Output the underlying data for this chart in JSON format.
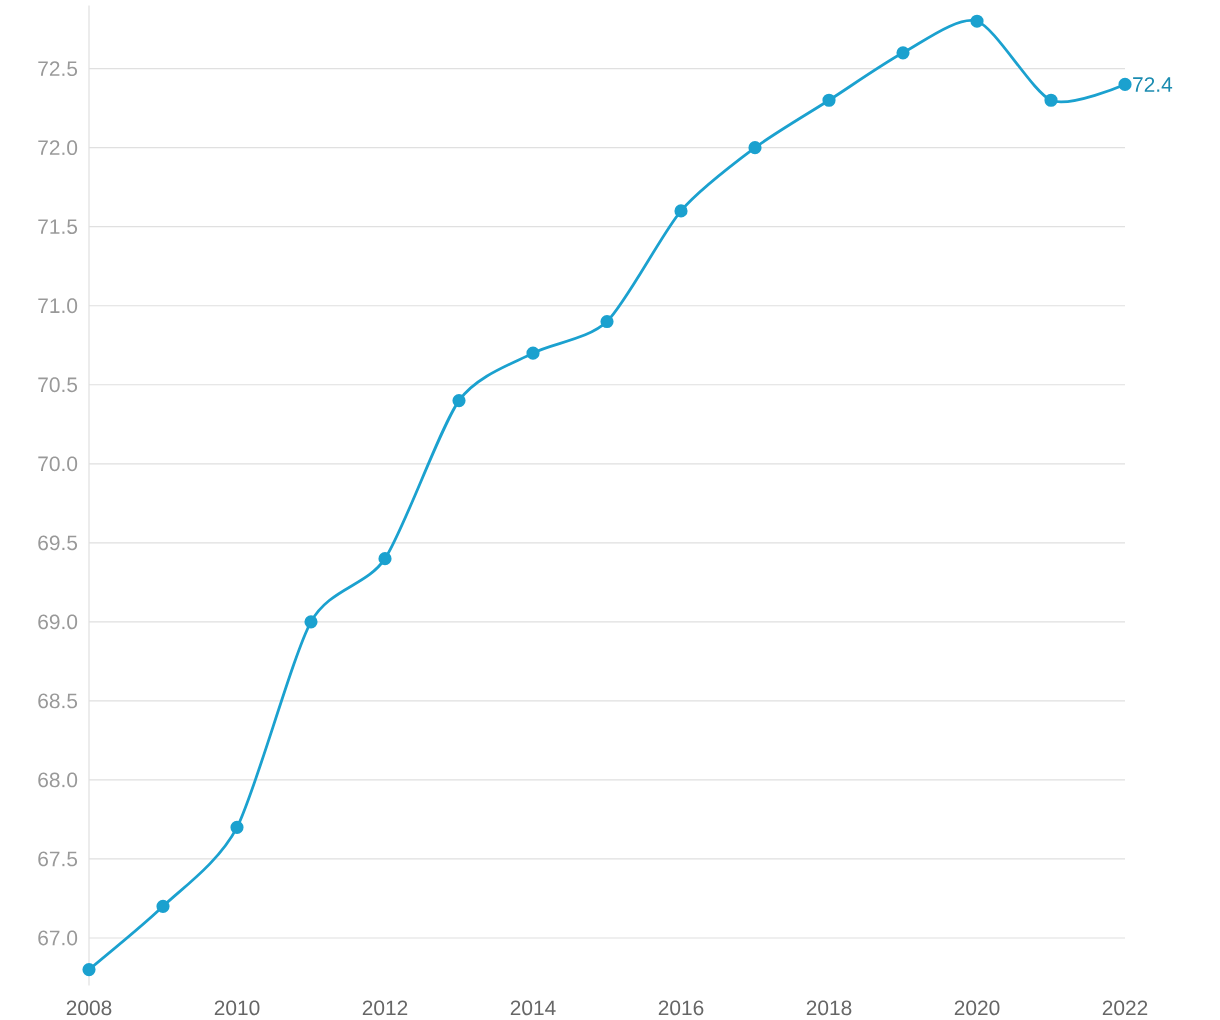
{
  "chart_data": {
    "type": "line",
    "marker": "circle",
    "grid": "y",
    "color": "#1ba1cf",
    "x": [
      2008,
      2009,
      2010,
      2011,
      2012,
      2013,
      2014,
      2015,
      2016,
      2017,
      2018,
      2019,
      2020,
      2021,
      2022
    ],
    "values": [
      66.8,
      67.2,
      67.7,
      69.0,
      69.4,
      70.4,
      70.7,
      70.9,
      71.6,
      72.0,
      72.3,
      72.6,
      72.8,
      72.3,
      72.4
    ],
    "value_labels": [
      null,
      null,
      null,
      null,
      null,
      null,
      null,
      null,
      null,
      null,
      null,
      null,
      null,
      null,
      "72.4"
    ],
    "xlim": [
      2008,
      2022
    ],
    "ylim": [
      66.7,
      72.9
    ],
    "xticks": [
      2008,
      2010,
      2012,
      2014,
      2016,
      2018,
      2020,
      2022
    ],
    "yticks": [
      {
        "value": 67,
        "label": "67.0"
      },
      {
        "value": 67.5,
        "label": "67.5"
      },
      {
        "value": 68,
        "label": "68.0"
      },
      {
        "value": 68.5,
        "label": "68.5"
      },
      {
        "value": 69,
        "label": "69.0"
      },
      {
        "value": 69.5,
        "label": "69.5"
      },
      {
        "value": 70,
        "label": "70.0"
      },
      {
        "value": 70.5,
        "label": "70.5"
      },
      {
        "value": 71,
        "label": "71.0"
      },
      {
        "value": 71.5,
        "label": "71.5"
      },
      {
        "value": 72,
        "label": "72.0"
      },
      {
        "value": 72.5,
        "label": "72.5"
      }
    ]
  }
}
